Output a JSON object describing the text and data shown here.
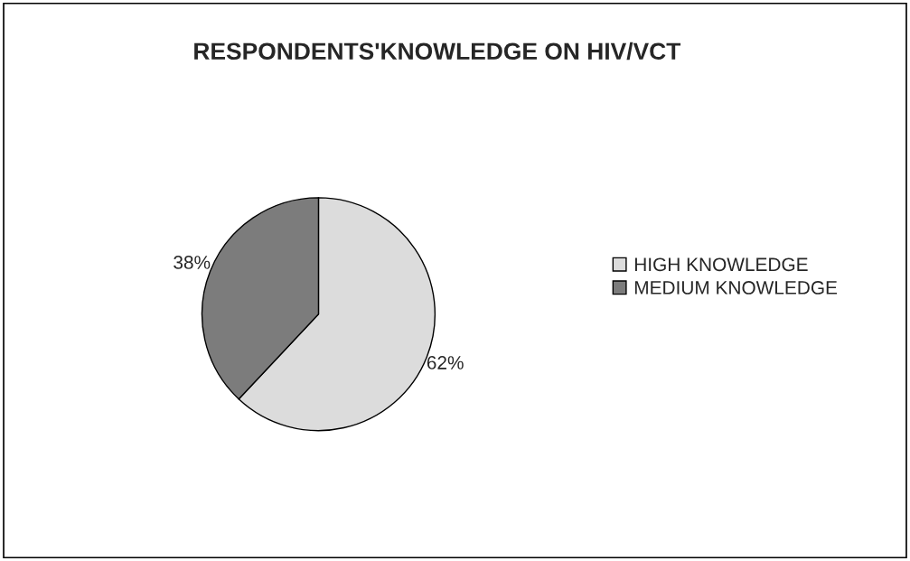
{
  "chart_data": {
    "type": "pie",
    "title": "RESPONDENTS'KNOWLEDGE ON HIV/VCT",
    "categories": [
      "HIGH KNOWLEDGE",
      "MEDIUM KNOWLEDGE"
    ],
    "values": [
      62,
      38
    ],
    "colors": [
      "#dcdcdc",
      "#7c7c7c"
    ],
    "value_labels": [
      "62%",
      "38%"
    ],
    "legend": "right"
  }
}
